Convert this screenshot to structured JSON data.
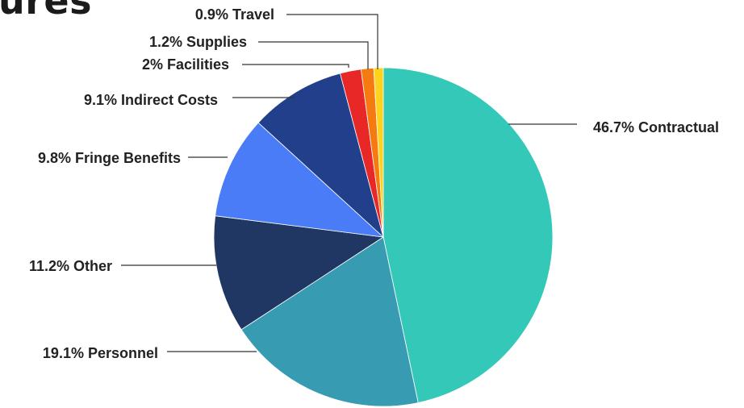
{
  "page": {
    "title_fragment": "ures"
  },
  "chart_data": {
    "type": "pie",
    "slices": [
      {
        "label": "Contractual",
        "value": 46.7,
        "text": "46.7% Contractual",
        "color": "#34c8b8"
      },
      {
        "label": "Personnel",
        "value": 19.1,
        "text": "19.1% Personnel",
        "color": "#379cb2"
      },
      {
        "label": "Other",
        "value": 11.2,
        "text": "11.2% Other",
        "color": "#1f3762"
      },
      {
        "label": "Fringe Benefits",
        "value": 9.8,
        "text": "9.8% Fringe Benefits",
        "color": "#4a7cf8"
      },
      {
        "label": "Indirect Costs",
        "value": 9.1,
        "text": "9.1% Indirect Costs",
        "color": "#223f8c"
      },
      {
        "label": "Facilities",
        "value": 2,
        "text": "2% Facilities",
        "color": "#e82727"
      },
      {
        "label": "Supplies",
        "value": 1.2,
        "text": "1.2% Supplies",
        "color": "#f57a0f"
      },
      {
        "label": "Travel",
        "value": 0.9,
        "text": "0.9% Travel",
        "color": "#ffd21e"
      }
    ],
    "start": "top",
    "direction": "clockwise",
    "legend": "none",
    "labels": "outside with leader lines"
  }
}
